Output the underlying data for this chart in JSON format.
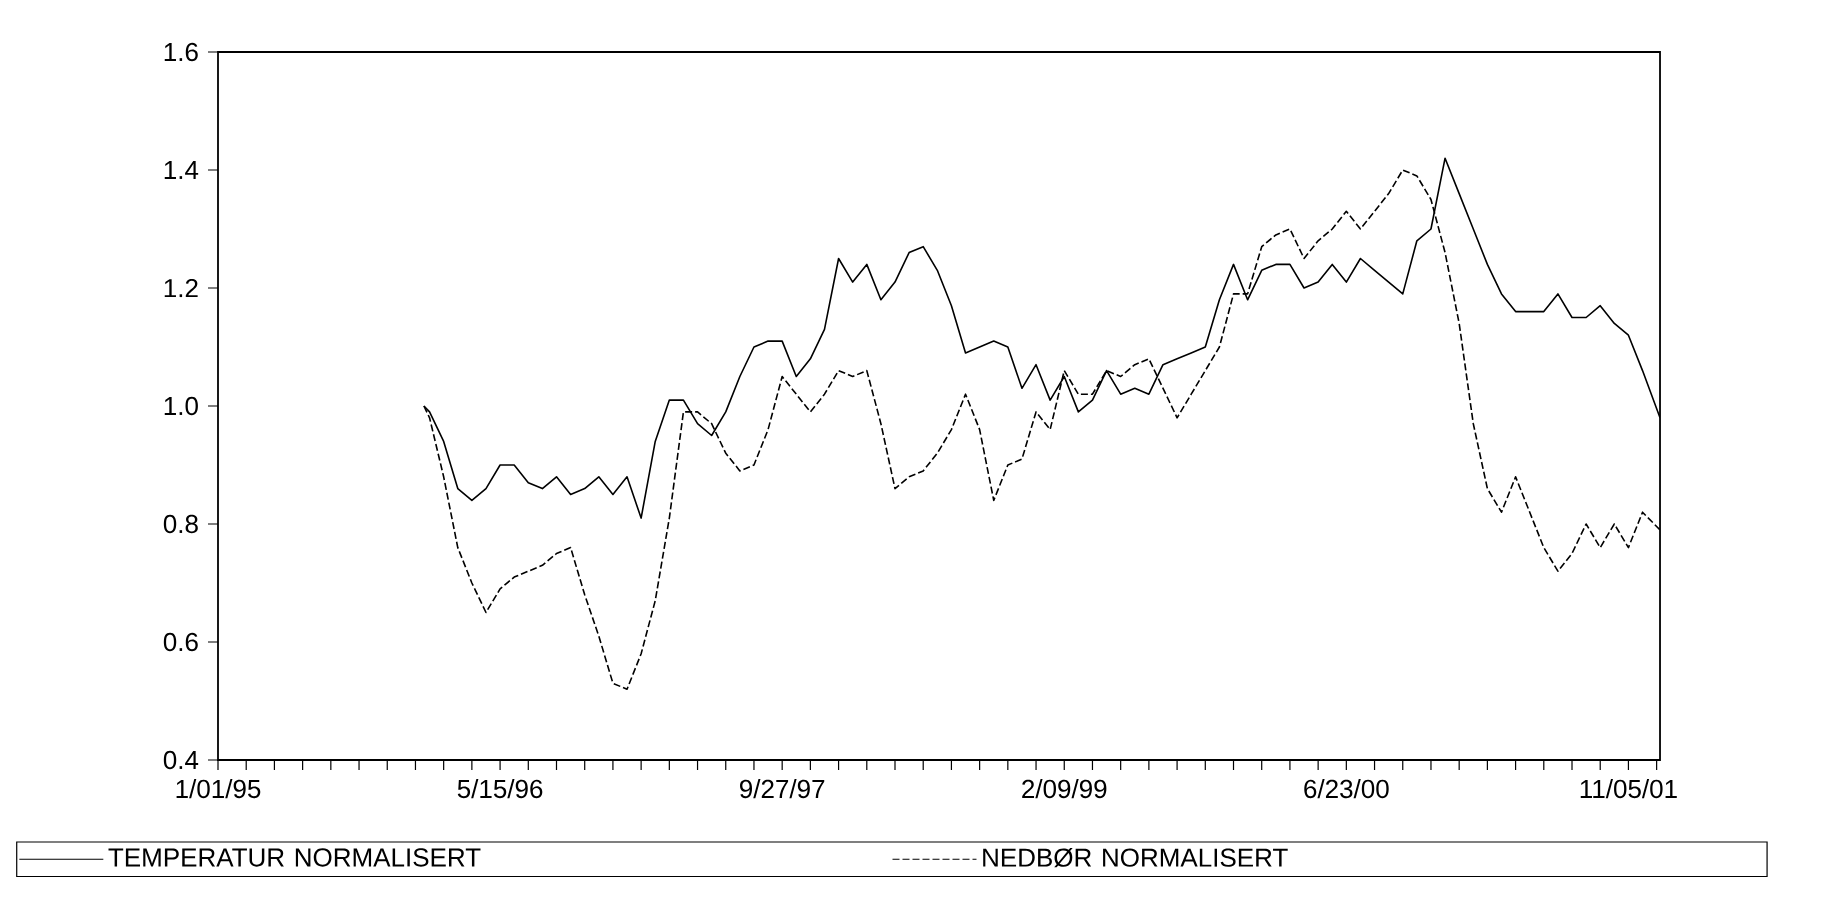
{
  "chart_data": {
    "type": "line",
    "x": [
      "1996-01-01",
      "1996-01-11",
      "1996-02-05",
      "1996-03-01",
      "1996-03-26",
      "1996-04-20",
      "1996-05-15",
      "1996-06-09",
      "1996-07-04",
      "1996-07-29",
      "1996-08-23",
      "1996-09-17",
      "1996-10-12",
      "1996-11-06",
      "1996-12-01",
      "1996-12-26",
      "1997-01-20",
      "1997-02-14",
      "1997-03-11",
      "1997-04-05",
      "1997-04-30",
      "1997-05-25",
      "1997-06-19",
      "1997-07-14",
      "1997-08-08",
      "1997-09-02",
      "1997-09-27",
      "1997-10-22",
      "1997-11-16",
      "1997-12-11",
      "1998-01-05",
      "1998-01-30",
      "1998-02-24",
      "1998-03-21",
      "1998-04-15",
      "1998-05-10",
      "1998-06-04",
      "1998-06-29",
      "1998-07-24",
      "1998-08-18",
      "1998-09-12",
      "1998-10-07",
      "1998-11-01",
      "1998-11-26",
      "1998-12-21",
      "1999-01-15",
      "1999-02-09",
      "1999-03-06",
      "1999-03-31",
      "1999-04-25",
      "1999-05-20",
      "1999-06-14",
      "1999-07-09",
      "1999-08-03",
      "1999-08-28",
      "1999-09-22",
      "1999-10-17",
      "1999-11-11",
      "1999-12-06",
      "1999-12-31",
      "2000-01-25",
      "2000-02-19",
      "2000-03-15",
      "2000-04-09",
      "2000-05-04",
      "2000-05-29",
      "2000-06-23",
      "2000-07-18",
      "2000-08-12",
      "2000-09-06",
      "2000-10-01",
      "2000-10-26",
      "2000-11-20",
      "2000-12-15",
      "2001-01-09",
      "2001-02-03",
      "2001-02-28",
      "2001-03-25",
      "2001-04-19",
      "2001-05-14",
      "2001-06-08",
      "2001-07-03",
      "2001-07-28",
      "2001-08-22",
      "2001-09-16",
      "2001-10-11",
      "2001-11-05",
      "2001-11-30",
      "2001-12-31"
    ],
    "series": [
      {
        "name": "TEMPERATUR NORMALISERT",
        "color": "#000000",
        "line_style": "solid",
        "values": [
          1.0,
          0.99,
          0.94,
          0.86,
          0.84,
          0.86,
          0.9,
          0.9,
          0.87,
          0.86,
          0.88,
          0.85,
          0.86,
          0.88,
          0.85,
          0.88,
          0.81,
          0.94,
          1.01,
          1.01,
          0.97,
          0.95,
          0.99,
          1.05,
          1.1,
          1.11,
          1.11,
          1.05,
          1.08,
          1.13,
          1.25,
          1.21,
          1.24,
          1.18,
          1.21,
          1.26,
          1.27,
          1.23,
          1.17,
          1.09,
          1.1,
          1.11,
          1.1,
          1.03,
          1.07,
          1.01,
          1.05,
          0.99,
          1.01,
          1.06,
          1.02,
          1.03,
          1.02,
          1.07,
          1.08,
          1.09,
          1.1,
          1.18,
          1.24,
          1.18,
          1.23,
          1.24,
          1.24,
          1.2,
          1.21,
          1.24,
          1.21,
          1.25,
          1.23,
          1.21,
          1.19,
          1.28,
          1.3,
          1.42,
          1.36,
          1.3,
          1.24,
          1.19,
          1.16,
          1.16,
          1.16,
          1.19,
          1.15,
          1.15,
          1.17,
          1.14,
          1.12,
          1.06,
          0.98
        ]
      },
      {
        "name": "NEDBØR NORMALISERT",
        "color": "#000000",
        "line_style": "dashed",
        "values": [
          1.0,
          0.98,
          0.88,
          0.76,
          0.7,
          0.65,
          0.69,
          0.71,
          0.72,
          0.73,
          0.75,
          0.76,
          0.68,
          0.61,
          0.53,
          0.52,
          0.58,
          0.67,
          0.81,
          0.99,
          0.99,
          0.97,
          0.92,
          0.89,
          0.9,
          0.96,
          1.05,
          1.02,
          0.99,
          1.02,
          1.06,
          1.05,
          1.06,
          0.97,
          0.86,
          0.88,
          0.89,
          0.92,
          0.96,
          1.02,
          0.96,
          0.84,
          0.9,
          0.91,
          0.99,
          0.96,
          1.06,
          1.02,
          1.02,
          1.06,
          1.05,
          1.07,
          1.08,
          1.03,
          0.98,
          1.02,
          1.06,
          1.1,
          1.19,
          1.19,
          1.27,
          1.29,
          1.3,
          1.25,
          1.28,
          1.3,
          1.33,
          1.3,
          1.33,
          1.36,
          1.4,
          1.39,
          1.35,
          1.26,
          1.14,
          0.97,
          0.86,
          0.82,
          0.88,
          0.82,
          0.76,
          0.72,
          0.75,
          0.8,
          0.76,
          0.8,
          0.76,
          0.82,
          0.79
        ]
      }
    ],
    "xlim": [
      "1995-01-01",
      "2001-12-31"
    ],
    "xticks": [
      {
        "value": "1995-01-01",
        "label": "1/01/95"
      },
      {
        "value": "1995-02-20",
        "label": null
      },
      {
        "value": "1995-04-11",
        "label": null
      },
      {
        "value": "1995-05-31",
        "label": null
      },
      {
        "value": "1995-07-20",
        "label": null
      },
      {
        "value": "1995-09-08",
        "label": null
      },
      {
        "value": "1995-10-28",
        "label": null
      },
      {
        "value": "1995-12-17",
        "label": null
      },
      {
        "value": "1996-02-05",
        "label": null
      },
      {
        "value": "1996-03-26",
        "label": null
      },
      {
        "value": "1996-05-15",
        "label": "5/15/96"
      },
      {
        "value": "1996-07-04",
        "label": null
      },
      {
        "value": "1996-08-23",
        "label": null
      },
      {
        "value": "1996-10-12",
        "label": null
      },
      {
        "value": "1996-12-01",
        "label": null
      },
      {
        "value": "1997-01-20",
        "label": null
      },
      {
        "value": "1997-03-11",
        "label": null
      },
      {
        "value": "1997-04-30",
        "label": null
      },
      {
        "value": "1997-06-19",
        "label": null
      },
      {
        "value": "1997-08-08",
        "label": null
      },
      {
        "value": "1997-09-27",
        "label": "9/27/97"
      },
      {
        "value": "1997-11-16",
        "label": null
      },
      {
        "value": "1998-01-05",
        "label": null
      },
      {
        "value": "1998-02-24",
        "label": null
      },
      {
        "value": "1998-04-15",
        "label": null
      },
      {
        "value": "1998-06-04",
        "label": null
      },
      {
        "value": "1998-07-24",
        "label": null
      },
      {
        "value": "1998-09-12",
        "label": null
      },
      {
        "value": "1998-11-01",
        "label": null
      },
      {
        "value": "1998-12-21",
        "label": null
      },
      {
        "value": "1999-02-09",
        "label": "2/09/99"
      },
      {
        "value": "1999-03-31",
        "label": null
      },
      {
        "value": "1999-05-20",
        "label": null
      },
      {
        "value": "1999-07-09",
        "label": null
      },
      {
        "value": "1999-08-28",
        "label": null
      },
      {
        "value": "1999-10-17",
        "label": null
      },
      {
        "value": "1999-12-06",
        "label": null
      },
      {
        "value": "2000-01-25",
        "label": null
      },
      {
        "value": "2000-03-15",
        "label": null
      },
      {
        "value": "2000-05-04",
        "label": null
      },
      {
        "value": "2000-06-23",
        "label": "6/23/00"
      },
      {
        "value": "2000-08-12",
        "label": null
      },
      {
        "value": "2000-10-01",
        "label": null
      },
      {
        "value": "2000-11-20",
        "label": null
      },
      {
        "value": "2001-01-09",
        "label": null
      },
      {
        "value": "2001-02-28",
        "label": null
      },
      {
        "value": "2001-04-19",
        "label": null
      },
      {
        "value": "2001-06-08",
        "label": null
      },
      {
        "value": "2001-07-28",
        "label": null
      },
      {
        "value": "2001-09-16",
        "label": null
      },
      {
        "value": "2001-11-05",
        "label": "11/05/01"
      },
      {
        "value": "2001-12-25",
        "label": null
      }
    ],
    "ylim": [
      0.4,
      1.6
    ],
    "yticks": [
      0.4,
      0.6,
      0.8,
      {
        "value": 1.0,
        "label": "1.0"
      },
      1.2,
      1.4,
      1.6
    ],
    "grid": false,
    "legend": "bottom"
  }
}
